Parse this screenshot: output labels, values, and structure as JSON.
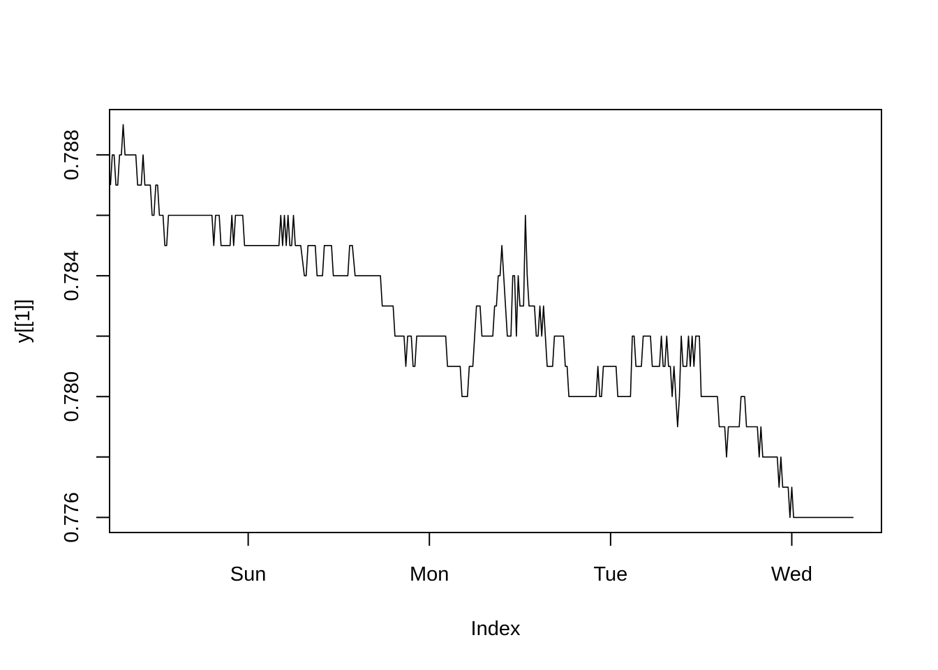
{
  "chart_data": {
    "type": "line",
    "title": "",
    "xlabel": "Index",
    "ylabel": "y[[1]]",
    "x_unit": "days",
    "x_ticks": [
      {
        "x": 0.76,
        "label": "Sun"
      },
      {
        "x": 1.76,
        "label": "Mon"
      },
      {
        "x": 2.76,
        "label": "Tue"
      },
      {
        "x": 3.76,
        "label": "Wed"
      }
    ],
    "y_ticks": [
      {
        "y": 0.776,
        "label": "0.776"
      },
      {
        "y": 0.778,
        "label": ""
      },
      {
        "y": 0.78,
        "label": "0.780"
      },
      {
        "y": 0.782,
        "label": ""
      },
      {
        "y": 0.784,
        "label": "0.784"
      },
      {
        "y": 0.786,
        "label": ""
      },
      {
        "y": 0.788,
        "label": "0.788"
      }
    ],
    "xlim": [
      -0.005,
      4.255
    ],
    "ylim": [
      0.7755,
      0.7895
    ],
    "grid": false,
    "line_color": "#000000",
    "series": [
      {
        "values": [
          [
            0,
            0.787
          ],
          [
            0.01,
            0.788
          ],
          [
            0.02,
            0.788
          ],
          [
            0.03,
            0.787
          ],
          [
            0.04,
            0.787
          ],
          [
            0.05,
            0.788
          ],
          [
            0.06,
            0.788
          ],
          [
            0.07,
            0.789
          ],
          [
            0.08,
            0.788
          ],
          [
            0.09,
            0.788
          ],
          [
            0.1,
            0.788
          ],
          [
            0.11,
            0.788
          ],
          [
            0.12,
            0.788
          ],
          [
            0.14,
            0.788
          ],
          [
            0.15,
            0.787
          ],
          [
            0.16,
            0.787
          ],
          [
            0.17,
            0.787
          ],
          [
            0.18,
            0.788
          ],
          [
            0.19,
            0.787
          ],
          [
            0.2,
            0.787
          ],
          [
            0.22,
            0.787
          ],
          [
            0.23,
            0.786
          ],
          [
            0.24,
            0.786
          ],
          [
            0.25,
            0.787
          ],
          [
            0.26,
            0.787
          ],
          [
            0.27,
            0.786
          ],
          [
            0.29,
            0.786
          ],
          [
            0.3,
            0.785
          ],
          [
            0.31,
            0.785
          ],
          [
            0.32,
            0.786
          ],
          [
            0.335,
            0.786
          ],
          [
            0.56,
            0.786
          ],
          [
            0.57,
            0.785
          ],
          [
            0.58,
            0.786
          ],
          [
            0.6,
            0.786
          ],
          [
            0.61,
            0.785
          ],
          [
            0.64,
            0.785
          ],
          [
            0.66,
            0.785
          ],
          [
            0.67,
            0.786
          ],
          [
            0.68,
            0.785
          ],
          [
            0.69,
            0.786
          ],
          [
            0.7,
            0.786
          ],
          [
            0.73,
            0.786
          ],
          [
            0.74,
            0.785
          ],
          [
            0.93,
            0.785
          ],
          [
            0.94,
            0.786
          ],
          [
            0.95,
            0.785
          ],
          [
            0.96,
            0.786
          ],
          [
            0.97,
            0.785
          ],
          [
            0.98,
            0.786
          ],
          [
            0.99,
            0.785
          ],
          [
            1.0,
            0.785
          ],
          [
            1.01,
            0.786
          ],
          [
            1.02,
            0.785
          ],
          [
            1.05,
            0.785
          ],
          [
            1.07,
            0.784
          ],
          [
            1.08,
            0.784
          ],
          [
            1.09,
            0.785
          ],
          [
            1.13,
            0.785
          ],
          [
            1.14,
            0.784
          ],
          [
            1.17,
            0.784
          ],
          [
            1.18,
            0.785
          ],
          [
            1.22,
            0.785
          ],
          [
            1.23,
            0.784
          ],
          [
            1.31,
            0.784
          ],
          [
            1.32,
            0.785
          ],
          [
            1.335,
            0.785
          ],
          [
            1.35,
            0.784
          ],
          [
            1.49,
            0.784
          ],
          [
            1.5,
            0.783
          ],
          [
            1.56,
            0.783
          ],
          [
            1.57,
            0.782
          ],
          [
            1.62,
            0.782
          ],
          [
            1.63,
            0.781
          ],
          [
            1.64,
            0.782
          ],
          [
            1.66,
            0.782
          ],
          [
            1.67,
            0.781
          ],
          [
            1.68,
            0.781
          ],
          [
            1.69,
            0.782
          ],
          [
            1.85,
            0.782
          ],
          [
            1.86,
            0.781
          ],
          [
            1.93,
            0.781
          ],
          [
            1.94,
            0.78
          ],
          [
            1.97,
            0.78
          ],
          [
            1.98,
            0.781
          ],
          [
            2.0,
            0.781
          ],
          [
            2.01,
            0.782
          ],
          [
            2.02,
            0.783
          ],
          [
            2.04,
            0.783
          ],
          [
            2.05,
            0.782
          ],
          [
            2.11,
            0.782
          ],
          [
            2.12,
            0.783
          ],
          [
            2.13,
            0.783
          ],
          [
            2.14,
            0.784
          ],
          [
            2.15,
            0.784
          ],
          [
            2.16,
            0.785
          ],
          [
            2.17,
            0.784
          ],
          [
            2.18,
            0.783
          ],
          [
            2.19,
            0.782
          ],
          [
            2.21,
            0.782
          ],
          [
            2.22,
            0.784
          ],
          [
            2.23,
            0.784
          ],
          [
            2.24,
            0.782
          ],
          [
            2.25,
            0.784
          ],
          [
            2.26,
            0.783
          ],
          [
            2.28,
            0.783
          ],
          [
            2.29,
            0.786
          ],
          [
            2.3,
            0.784
          ],
          [
            2.31,
            0.783
          ],
          [
            2.34,
            0.783
          ],
          [
            2.35,
            0.782
          ],
          [
            2.36,
            0.782
          ],
          [
            2.37,
            0.783
          ],
          [
            2.38,
            0.782
          ],
          [
            2.39,
            0.783
          ],
          [
            2.4,
            0.782
          ],
          [
            2.41,
            0.781
          ],
          [
            2.44,
            0.781
          ],
          [
            2.45,
            0.782
          ],
          [
            2.5,
            0.782
          ],
          [
            2.51,
            0.781
          ],
          [
            2.52,
            0.781
          ],
          [
            2.53,
            0.78
          ],
          [
            2.68,
            0.78
          ],
          [
            2.69,
            0.781
          ],
          [
            2.7,
            0.78
          ],
          [
            2.71,
            0.78
          ],
          [
            2.72,
            0.781
          ],
          [
            2.79,
            0.781
          ],
          [
            2.8,
            0.78
          ],
          [
            2.87,
            0.78
          ],
          [
            2.88,
            0.782
          ],
          [
            2.89,
            0.782
          ],
          [
            2.9,
            0.781
          ],
          [
            2.93,
            0.781
          ],
          [
            2.94,
            0.782
          ],
          [
            2.98,
            0.782
          ],
          [
            2.99,
            0.781
          ],
          [
            3.03,
            0.781
          ],
          [
            3.04,
            0.782
          ],
          [
            3.05,
            0.781
          ],
          [
            3.06,
            0.781
          ],
          [
            3.07,
            0.782
          ],
          [
            3.08,
            0.781
          ],
          [
            3.09,
            0.781
          ],
          [
            3.1,
            0.78
          ],
          [
            3.11,
            0.781
          ],
          [
            3.12,
            0.78
          ],
          [
            3.13,
            0.779
          ],
          [
            3.14,
            0.78
          ],
          [
            3.15,
            0.782
          ],
          [
            3.16,
            0.781
          ],
          [
            3.18,
            0.781
          ],
          [
            3.19,
            0.782
          ],
          [
            3.2,
            0.781
          ],
          [
            3.21,
            0.782
          ],
          [
            3.22,
            0.781
          ],
          [
            3.23,
            0.782
          ],
          [
            3.24,
            0.782
          ],
          [
            3.25,
            0.782
          ],
          [
            3.26,
            0.78
          ],
          [
            3.35,
            0.78
          ],
          [
            3.36,
            0.779
          ],
          [
            3.39,
            0.779
          ],
          [
            3.4,
            0.778
          ],
          [
            3.41,
            0.779
          ],
          [
            3.47,
            0.779
          ],
          [
            3.48,
            0.78
          ],
          [
            3.5,
            0.78
          ],
          [
            3.51,
            0.779
          ],
          [
            3.57,
            0.779
          ],
          [
            3.58,
            0.778
          ],
          [
            3.59,
            0.779
          ],
          [
            3.6,
            0.778
          ],
          [
            3.68,
            0.778
          ],
          [
            3.69,
            0.777
          ],
          [
            3.7,
            0.778
          ],
          [
            3.71,
            0.777
          ],
          [
            3.74,
            0.777
          ],
          [
            3.75,
            0.776
          ],
          [
            3.76,
            0.777
          ],
          [
            3.77,
            0.776
          ],
          [
            4.1,
            0.776
          ]
        ]
      }
    ]
  }
}
